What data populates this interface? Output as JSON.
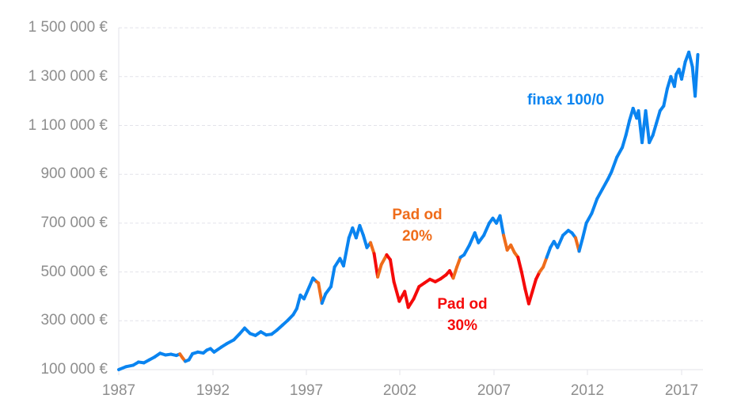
{
  "chart_data": {
    "type": "line",
    "title": "",
    "xlabel": "",
    "ylabel": "",
    "xlim": [
      1987,
      2018.1
    ],
    "ylim": [
      100000,
      1500000
    ],
    "grid": "horizontal dashed",
    "legend": "none",
    "x_ticks": [
      "1987",
      "1992",
      "1997",
      "2002",
      "2007",
      "2012",
      "2017"
    ],
    "y_ticks": [
      "100 000 €",
      "300 000 €",
      "500 000 €",
      "700 000 €",
      "900 000 €",
      "1 100 000 €",
      "1 300 000 €",
      "1 500 000 €"
    ],
    "colors": {
      "normal": "#0a84f0",
      "drawdown_20": "#ef6c1a",
      "drawdown_30": "#f50a0a",
      "axis_text": "#8e8e8e",
      "grid": "#e3e3ea"
    },
    "series": [
      {
        "name": "finax 100/0",
        "points": [
          [
            1987.0,
            100000,
            "n"
          ],
          [
            1987.4,
            112000,
            "n"
          ],
          [
            1987.8,
            118000,
            "n"
          ],
          [
            1988.1,
            131000,
            "n"
          ],
          [
            1988.4,
            128000,
            "n"
          ],
          [
            1988.7,
            140000,
            "n"
          ],
          [
            1989.0,
            152000,
            "n"
          ],
          [
            1989.3,
            167000,
            "n"
          ],
          [
            1989.6,
            160000,
            "n"
          ],
          [
            1989.9,
            163000,
            "n"
          ],
          [
            1990.2,
            158000,
            "n"
          ],
          [
            1990.4,
            164000,
            "n"
          ],
          [
            1990.55,
            148000,
            "o"
          ],
          [
            1990.7,
            134000,
            "o"
          ],
          [
            1990.9,
            140000,
            "n"
          ],
          [
            1991.1,
            165000,
            "n"
          ],
          [
            1991.4,
            172000,
            "n"
          ],
          [
            1991.7,
            168000,
            "n"
          ],
          [
            1991.9,
            180000,
            "n"
          ],
          [
            1992.1,
            186000,
            "n"
          ],
          [
            1992.3,
            172000,
            "n"
          ],
          [
            1992.7,
            192000,
            "n"
          ],
          [
            1993.0,
            206000,
            "n"
          ],
          [
            1993.4,
            222000,
            "n"
          ],
          [
            1993.7,
            245000,
            "n"
          ],
          [
            1994.0,
            270000,
            "n"
          ],
          [
            1994.3,
            248000,
            "n"
          ],
          [
            1994.6,
            240000,
            "n"
          ],
          [
            1994.9,
            255000,
            "n"
          ],
          [
            1995.2,
            242000,
            "n"
          ],
          [
            1995.5,
            245000,
            "n"
          ],
          [
            1995.8,
            262000,
            "n"
          ],
          [
            1996.1,
            282000,
            "n"
          ],
          [
            1996.4,
            302000,
            "n"
          ],
          [
            1996.7,
            325000,
            "n"
          ],
          [
            1996.9,
            350000,
            "n"
          ],
          [
            1997.1,
            405000,
            "n"
          ],
          [
            1997.3,
            390000,
            "n"
          ],
          [
            1997.6,
            440000,
            "n"
          ],
          [
            1997.8,
            475000,
            "n"
          ],
          [
            1998.0,
            460000,
            "n"
          ],
          [
            1998.1,
            455000,
            "o"
          ],
          [
            1998.3,
            372000,
            "o"
          ],
          [
            1998.5,
            410000,
            "n"
          ],
          [
            1998.8,
            440000,
            "n"
          ],
          [
            1999.0,
            520000,
            "n"
          ],
          [
            1999.3,
            555000,
            "n"
          ],
          [
            1999.5,
            525000,
            "n"
          ],
          [
            1999.8,
            640000,
            "n"
          ],
          [
            2000.0,
            680000,
            "n"
          ],
          [
            2000.2,
            640000,
            "n"
          ],
          [
            2000.4,
            690000,
            "n"
          ],
          [
            2000.6,
            650000,
            "n"
          ],
          [
            2000.8,
            600000,
            "n"
          ],
          [
            2001.0,
            620000,
            "n"
          ],
          [
            2001.2,
            575000,
            "o"
          ],
          [
            2001.4,
            480000,
            "r"
          ],
          [
            2001.6,
            530000,
            "o"
          ],
          [
            2001.9,
            570000,
            "o"
          ],
          [
            2002.1,
            550000,
            "r"
          ],
          [
            2002.3,
            460000,
            "r"
          ],
          [
            2002.6,
            380000,
            "r"
          ],
          [
            2002.9,
            420000,
            "r"
          ],
          [
            2003.1,
            355000,
            "r"
          ],
          [
            2003.4,
            390000,
            "r"
          ],
          [
            2003.7,
            440000,
            "r"
          ],
          [
            2004.0,
            455000,
            "r"
          ],
          [
            2004.3,
            470000,
            "r"
          ],
          [
            2004.6,
            460000,
            "r"
          ],
          [
            2004.9,
            472000,
            "r"
          ],
          [
            2005.2,
            488000,
            "r"
          ],
          [
            2005.4,
            505000,
            "r"
          ],
          [
            2005.6,
            475000,
            "r"
          ],
          [
            2005.8,
            520000,
            "o"
          ],
          [
            2006.0,
            560000,
            "o"
          ],
          [
            2006.2,
            570000,
            "n"
          ],
          [
            2006.5,
            610000,
            "n"
          ],
          [
            2006.8,
            660000,
            "n"
          ],
          [
            2007.0,
            620000,
            "n"
          ],
          [
            2007.3,
            650000,
            "n"
          ],
          [
            2007.6,
            700000,
            "n"
          ],
          [
            2007.8,
            720000,
            "n"
          ],
          [
            2008.0,
            700000,
            "n"
          ],
          [
            2008.2,
            730000,
            "n"
          ],
          [
            2008.4,
            650000,
            "n"
          ],
          [
            2008.6,
            590000,
            "o"
          ],
          [
            2008.8,
            610000,
            "o"
          ],
          [
            2009.0,
            580000,
            "o"
          ],
          [
            2009.2,
            560000,
            "o"
          ],
          [
            2009.4,
            500000,
            "r"
          ],
          [
            2009.6,
            430000,
            "r"
          ],
          [
            2009.8,
            370000,
            "r"
          ],
          [
            2010.0,
            420000,
            "r"
          ],
          [
            2010.2,
            470000,
            "r"
          ],
          [
            2010.4,
            500000,
            "r"
          ],
          [
            2010.6,
            520000,
            "o"
          ],
          [
            2010.8,
            560000,
            "o"
          ],
          [
            2011.0,
            600000,
            "n"
          ],
          [
            2011.2,
            625000,
            "n"
          ],
          [
            2011.4,
            600000,
            "n"
          ],
          [
            2011.7,
            650000,
            "n"
          ],
          [
            2012.0,
            670000,
            "n"
          ],
          [
            2012.2,
            660000,
            "n"
          ],
          [
            2012.4,
            640000,
            "n"
          ],
          [
            2012.6,
            585000,
            "o"
          ],
          [
            2012.8,
            640000,
            "n"
          ],
          [
            2013.0,
            700000,
            "n"
          ],
          [
            2013.3,
            740000,
            "n"
          ],
          [
            2013.6,
            800000,
            "n"
          ],
          [
            2013.9,
            840000,
            "n"
          ],
          [
            2014.2,
            880000,
            "n"
          ],
          [
            2014.4,
            910000,
            "n"
          ],
          [
            2014.7,
            970000,
            "n"
          ],
          [
            2015.0,
            1010000,
            "n"
          ],
          [
            2015.2,
            1060000,
            "n"
          ],
          [
            2015.4,
            1120000,
            "n"
          ],
          [
            2015.6,
            1170000,
            "n"
          ],
          [
            2015.8,
            1130000,
            "n"
          ],
          [
            2015.9,
            1160000,
            "n"
          ],
          [
            2016.1,
            1030000,
            "n"
          ],
          [
            2016.3,
            1160000,
            "n"
          ],
          [
            2016.5,
            1030000,
            "n"
          ],
          [
            2016.7,
            1060000,
            "n"
          ],
          [
            2016.9,
            1110000,
            "n"
          ],
          [
            2017.1,
            1160000,
            "n"
          ],
          [
            2017.3,
            1180000,
            "n"
          ],
          [
            2017.5,
            1250000,
            "n"
          ],
          [
            2017.7,
            1300000,
            "n"
          ],
          [
            2017.9,
            1260000,
            "n"
          ],
          [
            2018.0,
            1310000,
            "n"
          ],
          [
            2018.15,
            1330000,
            "n"
          ],
          [
            2018.3,
            1290000,
            "n"
          ],
          [
            2018.5,
            1360000,
            "n"
          ],
          [
            2018.7,
            1400000,
            "n"
          ],
          [
            2018.9,
            1340000,
            "n"
          ],
          [
            2019.05,
            1220000,
            "n"
          ],
          [
            2019.2,
            1390000,
            "n"
          ]
        ]
      }
    ],
    "annotations": [
      {
        "text_line1": "finax 100/0",
        "text_line2": "",
        "color": "#0a84f0"
      },
      {
        "text_line1": "Pad od",
        "text_line2": "20%",
        "color": "#ef6c1a"
      },
      {
        "text_line1": "Pad od",
        "text_line2": "30%",
        "color": "#f50a0a"
      }
    ]
  }
}
